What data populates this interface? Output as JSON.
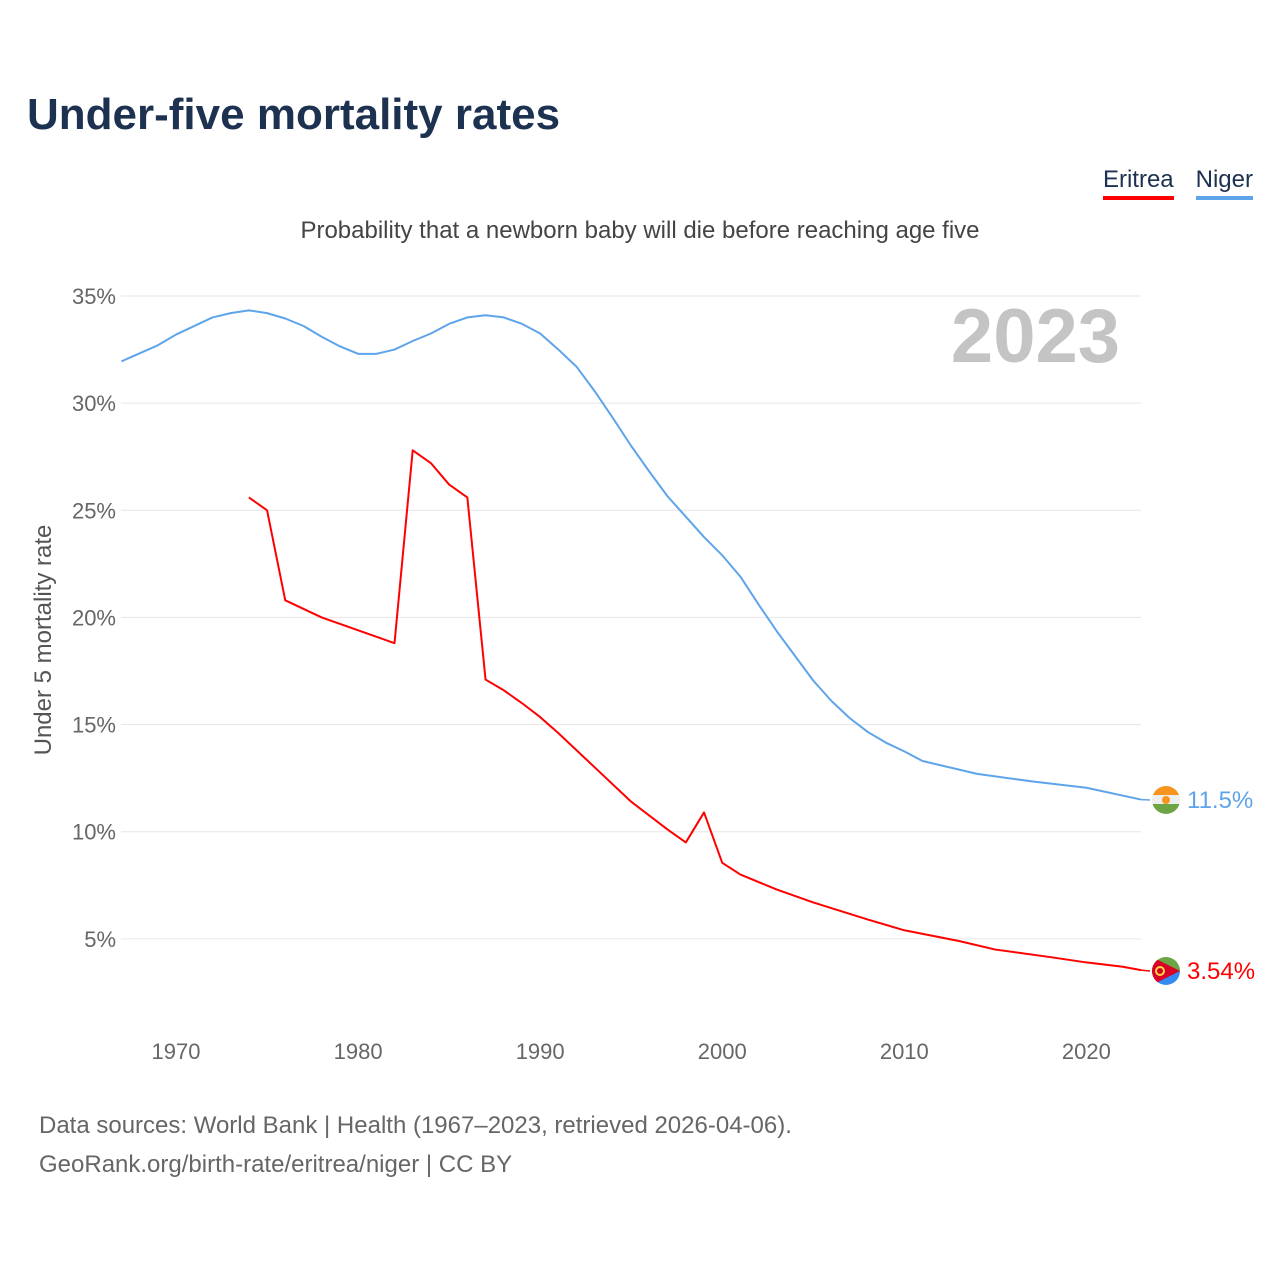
{
  "chart_data": {
    "type": "line",
    "title": "Under-five mortality rates",
    "subtitle": "Probability that a newborn baby will die before reaching age five",
    "ylabel": "Under 5 mortality rate",
    "xlabel": "",
    "xlim": [
      1967,
      2023
    ],
    "ylim": [
      0,
      35
    ],
    "x_ticks": [
      1970,
      1980,
      1990,
      2000,
      2010,
      2020
    ],
    "y_ticks": [
      5,
      10,
      15,
      20,
      25,
      30,
      35
    ],
    "y_tick_labels": [
      "5%",
      "10%",
      "15%",
      "20%",
      "25%",
      "30%",
      "35%"
    ],
    "grid": true,
    "legend_position": "top-right",
    "year_label": "2023",
    "series": [
      {
        "name": "Eritrea",
        "color": "#ff0000",
        "end_label": "3.54%",
        "points": [
          [
            1974,
            25.6
          ],
          [
            1975,
            25.0
          ],
          [
            1976,
            20.8
          ],
          [
            1978,
            20.0
          ],
          [
            1982,
            18.8
          ],
          [
            1983,
            27.8
          ],
          [
            1984,
            27.2
          ],
          [
            1985,
            26.2
          ],
          [
            1986,
            25.6
          ],
          [
            1987,
            17.1
          ],
          [
            1988,
            16.6
          ],
          [
            1989,
            16.0
          ],
          [
            1990,
            15.35
          ],
          [
            1991,
            14.6
          ],
          [
            1993,
            13.0
          ],
          [
            1995,
            11.4
          ],
          [
            1997,
            10.1
          ],
          [
            1998,
            9.5
          ],
          [
            1999,
            10.9
          ],
          [
            2000,
            8.55
          ],
          [
            2001,
            8.0
          ],
          [
            2003,
            7.3
          ],
          [
            2005,
            6.7
          ],
          [
            2008,
            5.9
          ],
          [
            2010,
            5.4
          ],
          [
            2013,
            4.9
          ],
          [
            2015,
            4.5
          ],
          [
            2018,
            4.15
          ],
          [
            2020,
            3.9
          ],
          [
            2022,
            3.7
          ],
          [
            2023,
            3.54
          ]
        ]
      },
      {
        "name": "Niger",
        "color": "#5ea4ea",
        "end_label": "11.5%",
        "points": [
          [
            1967,
            31.95
          ],
          [
            1969,
            32.7
          ],
          [
            1970,
            33.2
          ],
          [
            1972,
            34.0
          ],
          [
            1973,
            34.2
          ],
          [
            1974,
            34.33
          ],
          [
            1975,
            34.2
          ],
          [
            1976,
            33.95
          ],
          [
            1977,
            33.6
          ],
          [
            1978,
            33.1
          ],
          [
            1979,
            32.65
          ],
          [
            1980,
            32.3
          ],
          [
            1981,
            32.3
          ],
          [
            1982,
            32.5
          ],
          [
            1983,
            32.9
          ],
          [
            1984,
            33.25
          ],
          [
            1985,
            33.7
          ],
          [
            1986,
            34.0
          ],
          [
            1987,
            34.1
          ],
          [
            1988,
            34.0
          ],
          [
            1989,
            33.7
          ],
          [
            1990,
            33.25
          ],
          [
            1991,
            32.5
          ],
          [
            1992,
            31.7
          ],
          [
            1993,
            30.55
          ],
          [
            1994,
            29.3
          ],
          [
            1995,
            28.0
          ],
          [
            1996,
            26.8
          ],
          [
            1997,
            25.65
          ],
          [
            1998,
            24.7
          ],
          [
            1999,
            23.75
          ],
          [
            2000,
            22.9
          ],
          [
            2001,
            21.9
          ],
          [
            2002,
            20.6
          ],
          [
            2003,
            19.35
          ],
          [
            2004,
            18.2
          ],
          [
            2005,
            17.05
          ],
          [
            2006,
            16.1
          ],
          [
            2007,
            15.3
          ],
          [
            2008,
            14.65
          ],
          [
            2009,
            14.15
          ],
          [
            2010,
            13.75
          ],
          [
            2011,
            13.3
          ],
          [
            2014,
            12.7
          ],
          [
            2017,
            12.35
          ],
          [
            2020,
            12.05
          ],
          [
            2023,
            11.5
          ]
        ]
      }
    ]
  },
  "source": {
    "line1": "Data sources: World Bank | Health (1967–2023, retrieved 2026-04-06).",
    "line2": "GeoRank.org/birth-rate/eritrea/niger | CC BY"
  }
}
